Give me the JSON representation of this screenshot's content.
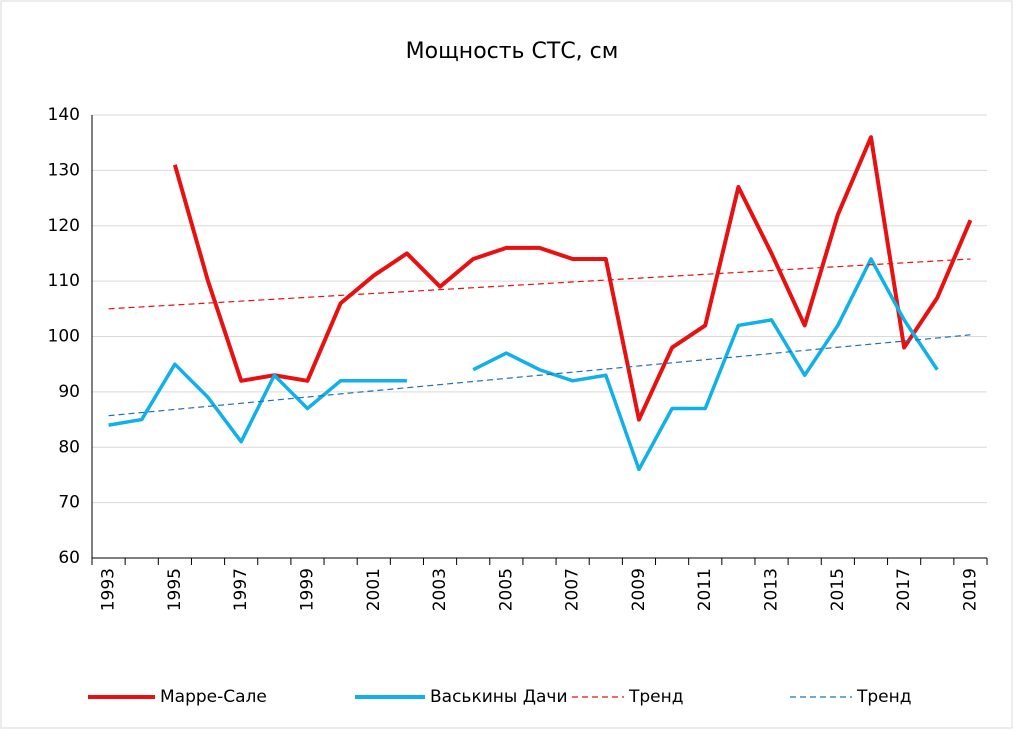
{
  "chart_data": {
    "type": "line",
    "title": "Мощность СТС, см",
    "categories": [
      "1993",
      null,
      "1995",
      null,
      "1997",
      null,
      "1999",
      null,
      "2001",
      null,
      "2003",
      null,
      "2005",
      null,
      "2007",
      null,
      "2009",
      null,
      "2011",
      null,
      "2013",
      null,
      "2015",
      null,
      "2017",
      null,
      "2019"
    ],
    "series": [
      {
        "name": "Марре-Сале",
        "color": "#e81010",
        "values": [
          null,
          null,
          131,
          110,
          92,
          93,
          92,
          106,
          111,
          115,
          109,
          114,
          116,
          116,
          114,
          114,
          85,
          98,
          102,
          127,
          115,
          102,
          122,
          136,
          98,
          107,
          121
        ]
      },
      {
        "name": "Васькины Дачи",
        "color": "#10b0e8",
        "values": [
          84,
          85,
          95,
          89,
          81,
          93,
          87,
          92,
          92,
          92,
          null,
          94,
          97,
          94,
          92,
          93,
          76,
          87,
          87,
          102,
          103,
          93,
          102,
          114,
          103,
          94,
          null
        ]
      }
    ],
    "trendlines": [
      {
        "name": "Тренд",
        "color": "#e81010",
        "start": 105,
        "end": 114
      },
      {
        "name": "Тренд",
        "color": "#2070b8",
        "start": 85.7,
        "end": 100.3
      }
    ],
    "ylim": [
      60,
      140
    ],
    "yticks": [
      60,
      70,
      80,
      90,
      100,
      110,
      120,
      130,
      140
    ],
    "grid": true,
    "legend": "bottom"
  }
}
